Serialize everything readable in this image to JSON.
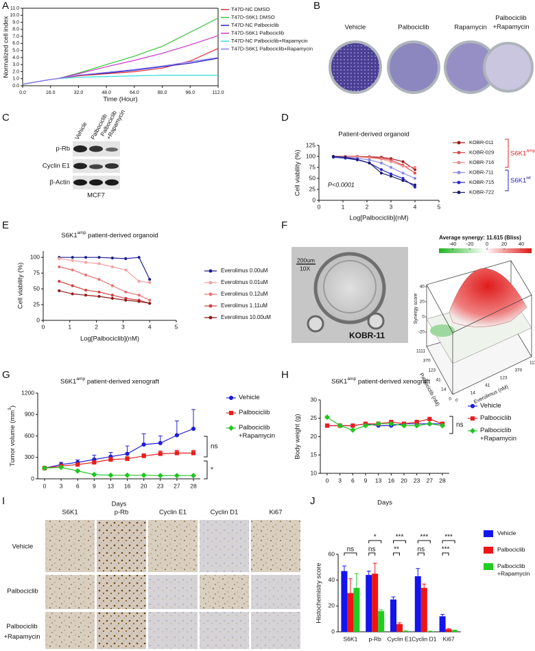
{
  "figure": {
    "panel_labels": [
      "A",
      "B",
      "C",
      "D",
      "E",
      "F",
      "G",
      "H",
      "I",
      "J"
    ]
  },
  "panel_b": {
    "labels": [
      "Vehicle",
      "Palbociclib",
      "Rapamycin",
      "Palbociclib +Rapamycin"
    ]
  },
  "panel_c": {
    "lanes": [
      "Vehicle",
      "Palbociclib",
      "Palbociclib +Rapamycin"
    ],
    "proteins": [
      "p-Rb",
      "Cyclin E1",
      "β-Actin"
    ],
    "cell_line": "MCF7"
  },
  "panel_f": {
    "scale_bar": "200um",
    "magnification": "10X",
    "sample": "KOBR-11",
    "synergy_title": "Average synergy: 11.615 (Bliss)",
    "colorbar_ticks": [
      -40,
      -20,
      0,
      20,
      40
    ],
    "z_label": "Synergy score",
    "z_ticks": [
      -20,
      0,
      20,
      40
    ],
    "palbociclib_label": "Palbociclib (nM)",
    "palbociclib_ticks": [
      1111,
      370,
      123,
      41,
      14,
      0
    ],
    "everolimus_label": "Everolimus (nM)",
    "everolimus_ticks": [
      0,
      14,
      41,
      123,
      370,
      1111
    ]
  },
  "panel_i": {
    "stains": [
      "S6K1",
      "p-Rb",
      "Cyclin E1",
      "Cyclin D1",
      "Ki67"
    ],
    "treatments": [
      "Vehicle",
      "Palbociclib",
      "Palbociclib +Rapamycin"
    ]
  },
  "chart_data": [
    {
      "type": "line",
      "xlabel": "Time (Hour)",
      "ylabel": "Normalized cell index",
      "x": [
        0,
        16,
        20,
        32,
        48,
        64,
        80,
        96,
        112
      ],
      "xlim": [
        0,
        112
      ],
      "xticks": [
        {
          "value": 0,
          "label": "0.0"
        },
        {
          "value": 16,
          "label": "16.0"
        },
        {
          "value": 32,
          "label": "32.0"
        },
        {
          "value": 48,
          "label": "48.0"
        },
        {
          "value": 64,
          "label": "64.0"
        },
        {
          "value": 80,
          "label": "80.0"
        },
        {
          "value": 96,
          "label": "96.0"
        },
        {
          "value": 112,
          "label": "112.0"
        }
      ],
      "ylim": [
        0,
        11
      ],
      "yticks": [
        {
          "value": 0,
          "label": "0.0"
        },
        {
          "value": 1,
          "label": "1.0"
        },
        {
          "value": 2,
          "label": "2.0"
        },
        {
          "value": 3,
          "label": "3.0"
        },
        {
          "value": 4,
          "label": "4.0"
        },
        {
          "value": 5,
          "label": "5.0"
        },
        {
          "value": 6,
          "label": "6.0"
        },
        {
          "value": 7,
          "label": "7.0"
        },
        {
          "value": 8,
          "label": "8.0"
        },
        {
          "value": 9,
          "label": "9.0"
        },
        {
          "value": 10,
          "label": "10.0"
        },
        {
          "value": 11,
          "label": "11.0"
        }
      ],
      "series": [
        {
          "name": "T47D-NC DMSO",
          "color": "#e0303a",
          "values": [
            0.2,
            0.9,
            1.0,
            1.4,
            1.7,
            2.0,
            2.5,
            3.5,
            5.3
          ]
        },
        {
          "name": "T47D-S6K1 DMSO",
          "color": "#33c433",
          "values": [
            0.2,
            0.9,
            1.0,
            1.8,
            3.0,
            4.2,
            5.6,
            7.6,
            9.6
          ]
        },
        {
          "name": "T47D-NC Palbociclib",
          "color": "#2020c0",
          "values": [
            0.2,
            0.9,
            1.0,
            1.5,
            1.8,
            2.2,
            2.7,
            3.2,
            3.9
          ]
        },
        {
          "name": "T47D-S6K1 Palbociclib",
          "color": "#cc33cc",
          "values": [
            0.2,
            0.9,
            1.0,
            1.7,
            2.7,
            3.6,
            4.6,
            5.8,
            7.1
          ]
        },
        {
          "name": "T47D-NC Palbociclib+Rapamycin",
          "color": "#33dddd",
          "values": [
            0.2,
            0.9,
            1.0,
            1.2,
            1.3,
            1.4,
            1.5,
            1.5,
            1.5
          ]
        },
        {
          "name": "T47D-S6K1 Palbociclib+Rapamycin",
          "color": "#8877ee",
          "values": [
            0.2,
            0.9,
            1.0,
            1.5,
            1.9,
            2.3,
            2.8,
            3.4,
            4.0
          ]
        }
      ]
    },
    {
      "type": "line",
      "title": "Patient-derived organoid",
      "xlabel": "Log[Palbociclib](nM)",
      "ylabel": "Cell viability (%)",
      "annotation": "P<0.0001",
      "marker": "circle",
      "x": [
        0.6,
        1.1,
        1.6,
        2.1,
        2.6,
        3.0,
        3.5,
        4.0
      ],
      "xlim": [
        0,
        5
      ],
      "xticks": [
        0,
        1,
        2,
        3,
        4,
        5
      ],
      "ylim": [
        0,
        125
      ],
      "yticks": [
        0,
        25,
        50,
        75,
        100,
        125
      ],
      "groups": [
        {
          "label": [
            "S6K1",
            "amp"
          ],
          "color": "#e02020"
        },
        {
          "label": [
            "S6K1",
            "wt"
          ],
          "color": "#2020c0"
        }
      ],
      "series": [
        {
          "name": "KOBR-011",
          "color": "#a01818",
          "values": [
            100,
            100,
            100,
            99,
            98,
            95,
            88,
            70
          ]
        },
        {
          "name": "KOBR-029",
          "color": "#e04848",
          "values": [
            100,
            100,
            99,
            98,
            96,
            92,
            80,
            62
          ]
        },
        {
          "name": "KOBR-716",
          "color": "#f08a8a",
          "values": [
            100,
            99,
            99,
            97,
            94,
            88,
            78,
            75
          ]
        },
        {
          "name": "KOBR-711",
          "color": "#8a8ae8",
          "values": [
            100,
            98,
            96,
            92,
            85,
            75,
            62,
            50
          ]
        },
        {
          "name": "KOBR-715",
          "color": "#2828c8",
          "values": [
            98,
            96,
            92,
            85,
            70,
            60,
            50,
            30
          ]
        },
        {
          "name": "KOBR-722",
          "color": "#1c1c70",
          "values": [
            100,
            98,
            93,
            85,
            62,
            55,
            45,
            35
          ]
        }
      ]
    },
    {
      "type": "line",
      "title_parts": [
        "S6K1",
        "amp",
        " patient-derived organoid"
      ],
      "xlabel": "Log[Palbociclib](nM)",
      "ylabel": "Cell viability (%)",
      "marker": "circle",
      "x": [
        0.6,
        1.1,
        1.6,
        2.1,
        2.6,
        3.1,
        3.6,
        4.0
      ],
      "xlim": [
        0,
        5
      ],
      "xticks": [
        0,
        1,
        2,
        3,
        4,
        5
      ],
      "ylim": [
        0,
        110
      ],
      "yticks": [
        0,
        25,
        50,
        75,
        100
      ],
      "series": [
        {
          "name": "Everolimus 0.00uM",
          "color": "#1c1c90",
          "values": [
            100,
            100,
            100,
            100,
            99,
            98,
            100,
            65
          ]
        },
        {
          "name": "Everolimus 0.01uM",
          "color": "#f4a0a0",
          "values": [
            98,
            95,
            92,
            90,
            85,
            80,
            62,
            60
          ]
        },
        {
          "name": "Everolimus 0.12uM",
          "color": "#ec7070",
          "values": [
            85,
            80,
            72,
            65,
            55,
            45,
            40,
            32
          ]
        },
        {
          "name": "Everolimus 1.11uM",
          "color": "#d04040",
          "values": [
            62,
            55,
            48,
            45,
            40,
            35,
            32,
            27
          ]
        },
        {
          "name": "Everolimus 10.00uM",
          "color": "#901818",
          "values": [
            47,
            42,
            40,
            38,
            35,
            32,
            30,
            27
          ]
        }
      ]
    },
    {
      "type": "line",
      "title_parts": [
        "S6K1",
        "amp",
        " patient-derived xenograft"
      ],
      "xlabel": "Days",
      "ylabel_parts": [
        "Tumor volume (mm",
        "3",
        ")"
      ],
      "categories": [
        "0",
        "3",
        "6",
        "9",
        "13",
        "16",
        "20",
        "23",
        "27",
        "28"
      ],
      "ylim": [
        0,
        1200
      ],
      "yticks": [
        0,
        300,
        600,
        900,
        1200
      ],
      "annotations": [
        "ns",
        "*"
      ],
      "series": [
        {
          "name": "Vehicle",
          "color": "#1f1fd6",
          "marker": "circle",
          "values": [
            150,
            200,
            230,
            270,
            310,
            350,
            480,
            500,
            610,
            700
          ],
          "errors": [
            10,
            30,
            35,
            60,
            60,
            110,
            150,
            100,
            200,
            270
          ]
        },
        {
          "name": "Palbociclib",
          "color": "#e81e1e",
          "marker": "square",
          "values": [
            150,
            180,
            200,
            230,
            270,
            280,
            320,
            350,
            360,
            360
          ],
          "errors": [
            10,
            15,
            20,
            25,
            30,
            30,
            30,
            40,
            40,
            40
          ]
        },
        {
          "name": "Palbociclib +Rapamycin",
          "color": "#22c422",
          "marker": "diamond",
          "values": [
            150,
            160,
            110,
            60,
            50,
            50,
            50,
            45,
            45,
            45
          ],
          "errors": [
            10,
            20,
            15,
            10,
            5,
            5,
            5,
            5,
            5,
            5
          ]
        }
      ]
    },
    {
      "type": "line",
      "title_parts": [
        "S6K1",
        "amp",
        " patient-derived xenograft"
      ],
      "xlabel": "Days",
      "ylabel": "Body weight (g)",
      "categories": [
        "0",
        "3",
        "6",
        "9",
        "13",
        "16",
        "20",
        "23",
        "27",
        "28"
      ],
      "ylim": [
        10,
        30
      ],
      "yticks": [
        10,
        15,
        20,
        25,
        30
      ],
      "annotations": [
        "ns"
      ],
      "series": [
        {
          "name": "Vehicle",
          "color": "#1f1fd6",
          "marker": "circle",
          "values": [
            23,
            23,
            23,
            23.5,
            23,
            23,
            23.5,
            23.5,
            23.5,
            23.5
          ]
        },
        {
          "name": "Palbociclib",
          "color": "#e81e1e",
          "marker": "square",
          "values": [
            23,
            23,
            23,
            23.5,
            23.5,
            24,
            23.5,
            24,
            24.8,
            23.5
          ]
        },
        {
          "name": "Palbociclib +Rapamycin",
          "color": "#22c422",
          "marker": "diamond",
          "values": [
            25.3,
            23,
            21.8,
            23,
            23.5,
            23.5,
            23,
            23,
            23.5,
            23
          ]
        }
      ]
    },
    {
      "type": "bar",
      "ylabel": "Histochemistry score",
      "categories": [
        "S6K1",
        "p-Rb",
        "Cyclin E1",
        "Cyclin D1",
        "Ki67"
      ],
      "ylim": [
        0,
        60
      ],
      "yticks": [
        0,
        20,
        40,
        60
      ],
      "annotations": [
        "ns",
        "*",
        "ns",
        "***",
        "**",
        "***",
        "ns",
        "***",
        "***"
      ],
      "series": [
        {
          "name": "Vehicle",
          "color": "#1414f0",
          "values": [
            47,
            44,
            25,
            43,
            12
          ],
          "errors": [
            4,
            3,
            2,
            6,
            1.5
          ]
        },
        {
          "name": "Palbociclib",
          "color": "#f01414",
          "values": [
            30,
            45,
            6,
            34,
            2
          ],
          "errors": [
            11,
            8,
            1,
            3,
            0.5
          ]
        },
        {
          "name": "Palbociclib +Rapamycin",
          "color": "#22cc22",
          "values": [
            34,
            16,
            0.5,
            0.3,
            1
          ],
          "errors": [
            11,
            1,
            0.2,
            0.2,
            0.3
          ]
        }
      ]
    }
  ]
}
